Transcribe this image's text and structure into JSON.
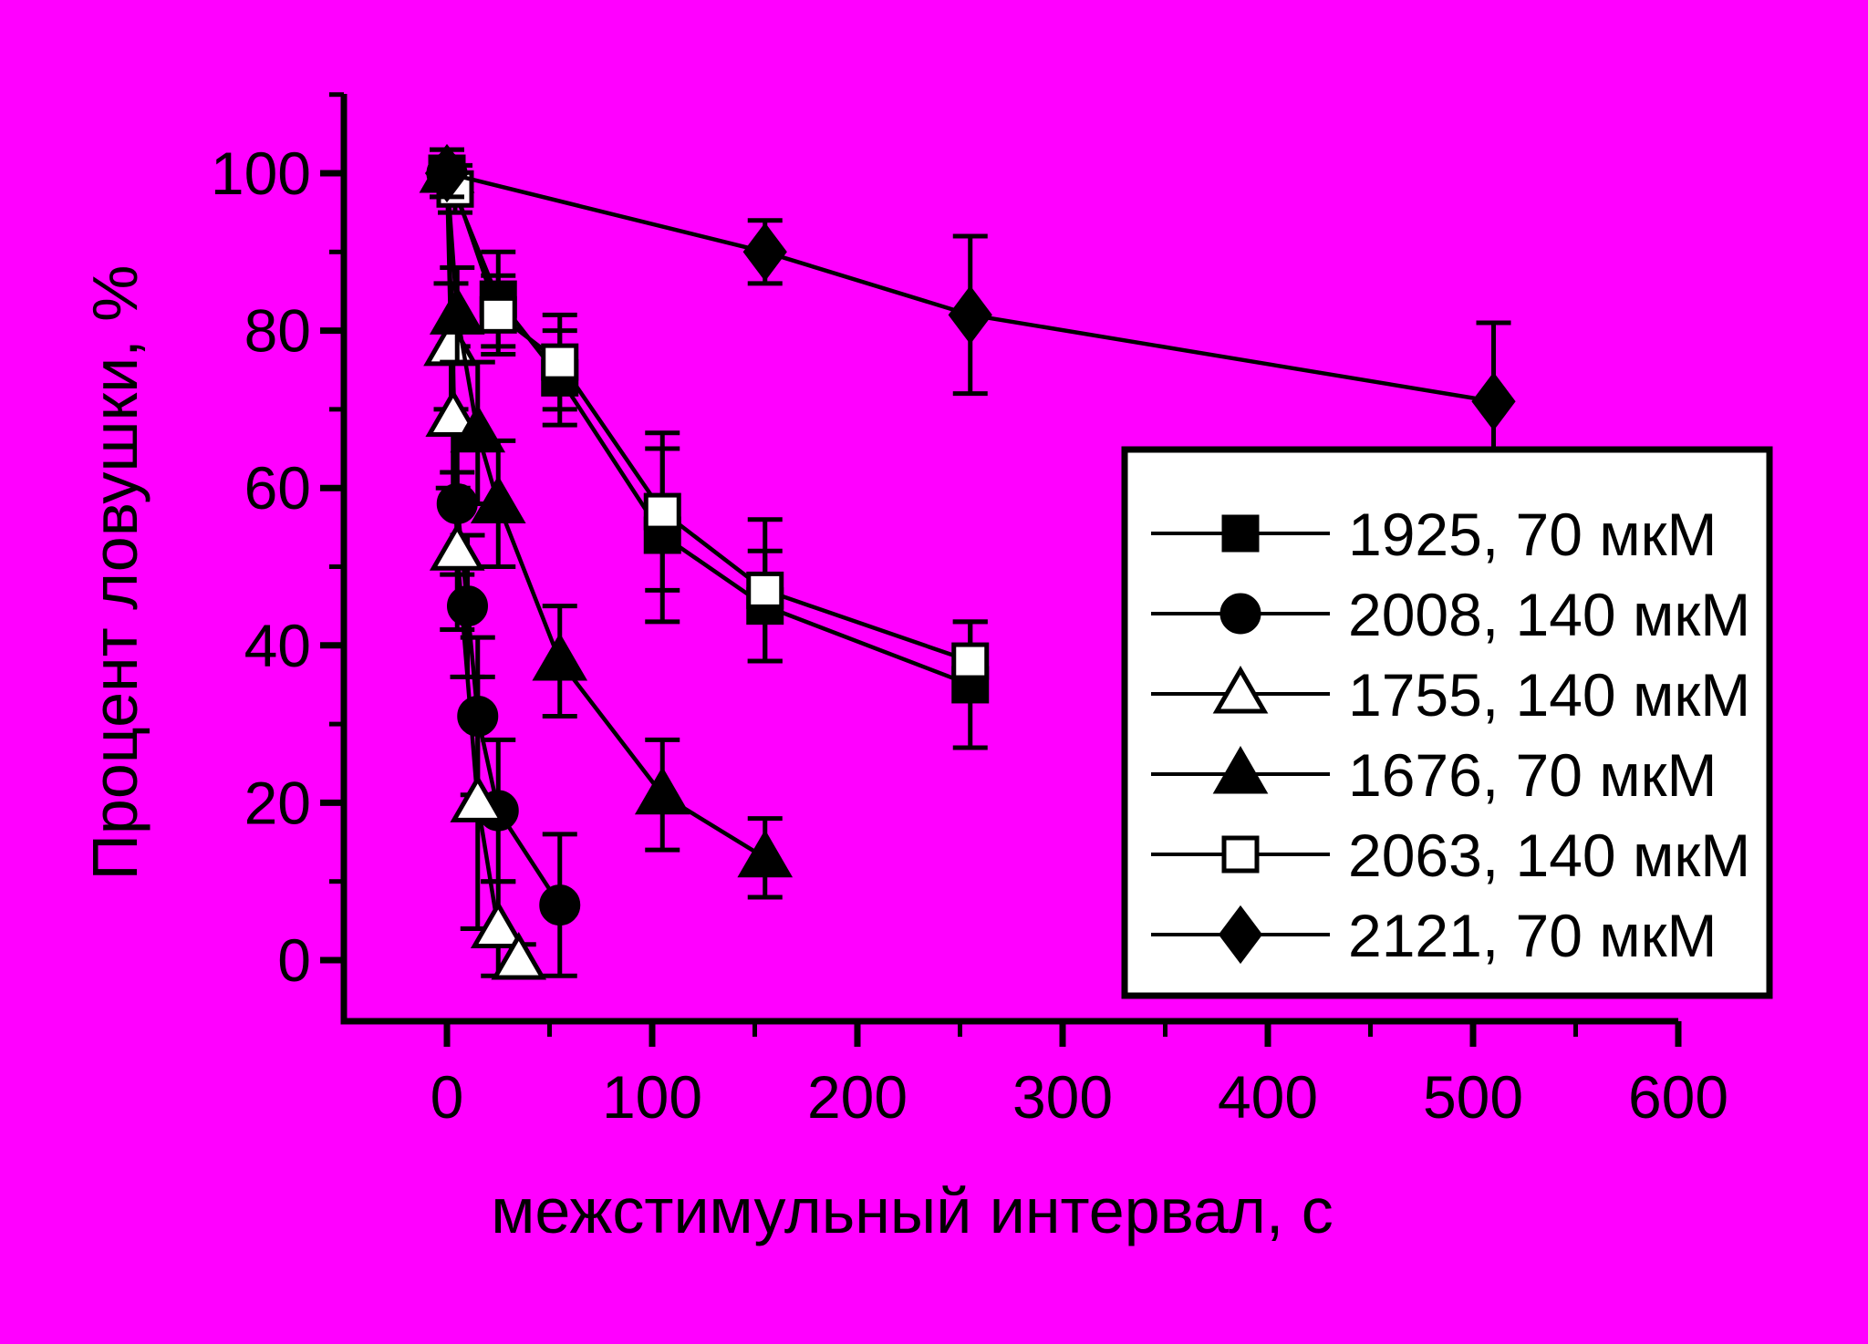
{
  "colors": {
    "background": "#FF00FF",
    "foreground": "#000000",
    "legend_background": "#FFFFFF"
  },
  "chart_data": {
    "type": "line",
    "title": "",
    "xlabel": "межстимульный интервал, с",
    "ylabel": "Процент ловушки, %",
    "x_axis": {
      "label": "межстимульный интервал, с",
      "ticks": [
        0,
        100,
        200,
        300,
        400,
        500,
        600
      ],
      "minor_ticks": [
        50,
        150,
        250,
        350,
        450,
        550
      ],
      "range": [
        -50,
        600
      ]
    },
    "y_axis": {
      "label": "Процент ловушки, %",
      "ticks": [
        0,
        20,
        40,
        60,
        80,
        100
      ],
      "minor_ticks": [
        10,
        30,
        50,
        70,
        90,
        110
      ],
      "range": [
        -8,
        110
      ]
    },
    "grid": false,
    "legend_position": "inside-right-bottom",
    "series": [
      {
        "label": "1925, 70 мкМ",
        "marker": "square",
        "fill": "filled",
        "x": [
          0,
          25,
          55,
          105,
          155,
          255
        ],
        "y": [
          100,
          84,
          74,
          54,
          45,
          35
        ],
        "err": [
          3,
          6,
          6,
          11,
          7,
          8
        ]
      },
      {
        "label": "2008, 140 мкМ",
        "marker": "circle",
        "fill": "filled",
        "x": [
          0,
          5,
          10,
          15,
          25,
          55
        ],
        "y": [
          100,
          58,
          45,
          31,
          19,
          7
        ],
        "err": [
          0,
          9,
          9,
          10,
          9,
          9
        ]
      },
      {
        "label": "1755, 140 мкМ",
        "marker": "triangle",
        "fill": "open",
        "x": [
          0,
          2,
          3,
          5,
          15,
          25,
          35
        ],
        "y": [
          100,
          78,
          69,
          52,
          20,
          4,
          0
        ],
        "err": [
          0,
          8,
          9,
          10,
          16,
          6,
          2
        ]
      },
      {
        "label": "1676, 70 мкМ",
        "marker": "triangle",
        "fill": "filled",
        "x": [
          0,
          5,
          15,
          25,
          55,
          105,
          155
        ],
        "y": [
          100,
          82,
          67,
          58,
          38,
          21,
          13
        ],
        "err": [
          0,
          6,
          9,
          8,
          7,
          7,
          5
        ]
      },
      {
        "label": "2063, 140 мкМ",
        "marker": "square",
        "fill": "open",
        "x": [
          4,
          25,
          55,
          105,
          155,
          255
        ],
        "y": [
          98,
          82,
          76,
          57,
          47,
          38
        ],
        "err": [
          3,
          5,
          6,
          10,
          9,
          5
        ]
      },
      {
        "label": "2121, 70 мкМ",
        "marker": "diamond",
        "fill": "filled",
        "x": [
          0,
          155,
          255,
          510
        ],
        "y": [
          100,
          90,
          82,
          71
        ],
        "err": [
          3,
          4,
          10,
          10
        ]
      }
    ]
  }
}
